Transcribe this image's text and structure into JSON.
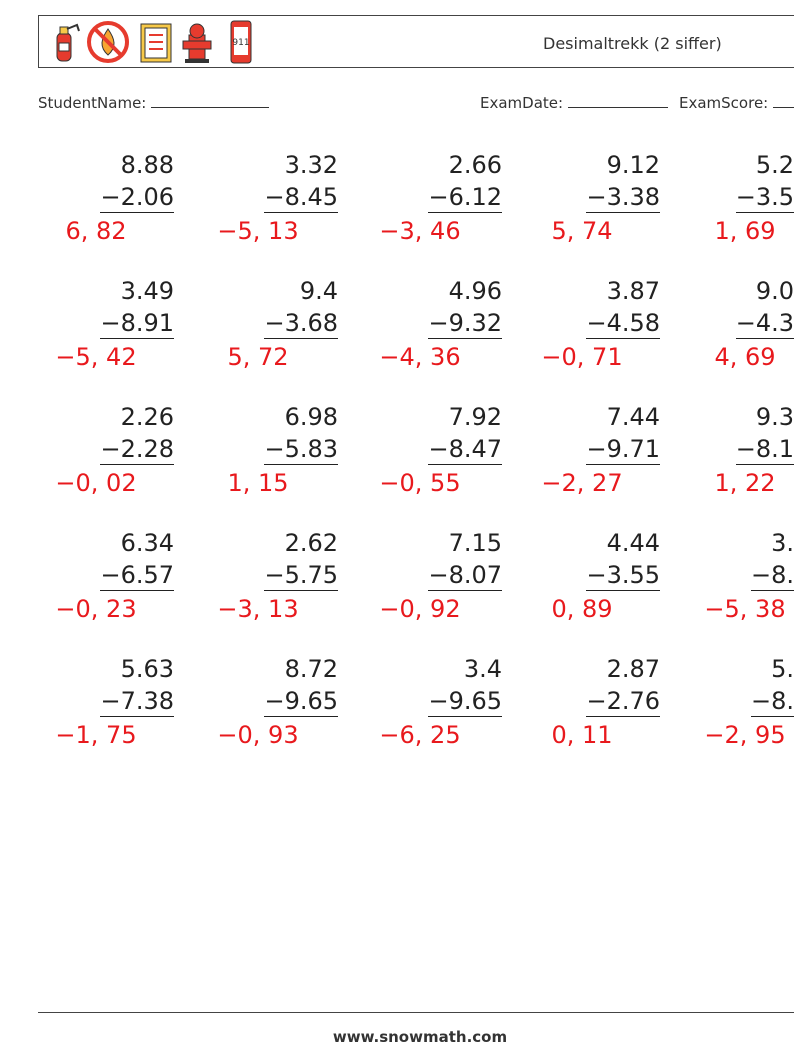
{
  "header": {
    "title": "Desimaltrekk (2 siffer)"
  },
  "fields": {
    "student_name": "StudentName:",
    "exam_date": "ExamDate:",
    "exam_score": "ExamScore:"
  },
  "problems": [
    [
      {
        "top": "8.88",
        "bottom": "−2.06",
        "answer": "6, 82"
      },
      {
        "top": "3.32",
        "bottom": "−8.45",
        "answer": "−5, 13"
      },
      {
        "top": "2.66",
        "bottom": "−6.12",
        "answer": "−3, 46"
      },
      {
        "top": "9.12",
        "bottom": "−3.38",
        "answer": "5, 74"
      },
      {
        "top": "5.2",
        "bottom": "−3.5",
        "answer": "1, 69"
      }
    ],
    [
      {
        "top": "3.49",
        "bottom": "−8.91",
        "answer": "−5, 42"
      },
      {
        "top": "9.4",
        "bottom": "−3.68",
        "answer": "5, 72"
      },
      {
        "top": "4.96",
        "bottom": "−9.32",
        "answer": "−4, 36"
      },
      {
        "top": "3.87",
        "bottom": "−4.58",
        "answer": "−0, 71"
      },
      {
        "top": "9.0",
        "bottom": "−4.3",
        "answer": "4, 69"
      }
    ],
    [
      {
        "top": "2.26",
        "bottom": "−2.28",
        "answer": "−0, 02"
      },
      {
        "top": "6.98",
        "bottom": "−5.83",
        "answer": "1, 15"
      },
      {
        "top": "7.92",
        "bottom": "−8.47",
        "answer": "−0, 55"
      },
      {
        "top": "7.44",
        "bottom": "−9.71",
        "answer": "−2, 27"
      },
      {
        "top": "9.3",
        "bottom": "−8.1",
        "answer": "1, 22"
      }
    ],
    [
      {
        "top": "6.34",
        "bottom": "−6.57",
        "answer": "−0, 23"
      },
      {
        "top": "2.62",
        "bottom": "−5.75",
        "answer": "−3, 13"
      },
      {
        "top": "7.15",
        "bottom": "−8.07",
        "answer": "−0, 92"
      },
      {
        "top": "4.44",
        "bottom": "−3.55",
        "answer": "0, 89"
      },
      {
        "top": "3.",
        "bottom": "−8.",
        "answer": "−5, 38"
      }
    ],
    [
      {
        "top": "5.63",
        "bottom": "−7.38",
        "answer": "−1, 75"
      },
      {
        "top": "8.72",
        "bottom": "−9.65",
        "answer": "−0, 93"
      },
      {
        "top": "3.4",
        "bottom": "−9.65",
        "answer": "−6, 25"
      },
      {
        "top": "2.87",
        "bottom": "−2.76",
        "answer": "0, 11"
      },
      {
        "top": "5.",
        "bottom": "−8.",
        "answer": "−2, 95"
      }
    ]
  ],
  "footer": {
    "url": "www.snowmath.com"
  }
}
